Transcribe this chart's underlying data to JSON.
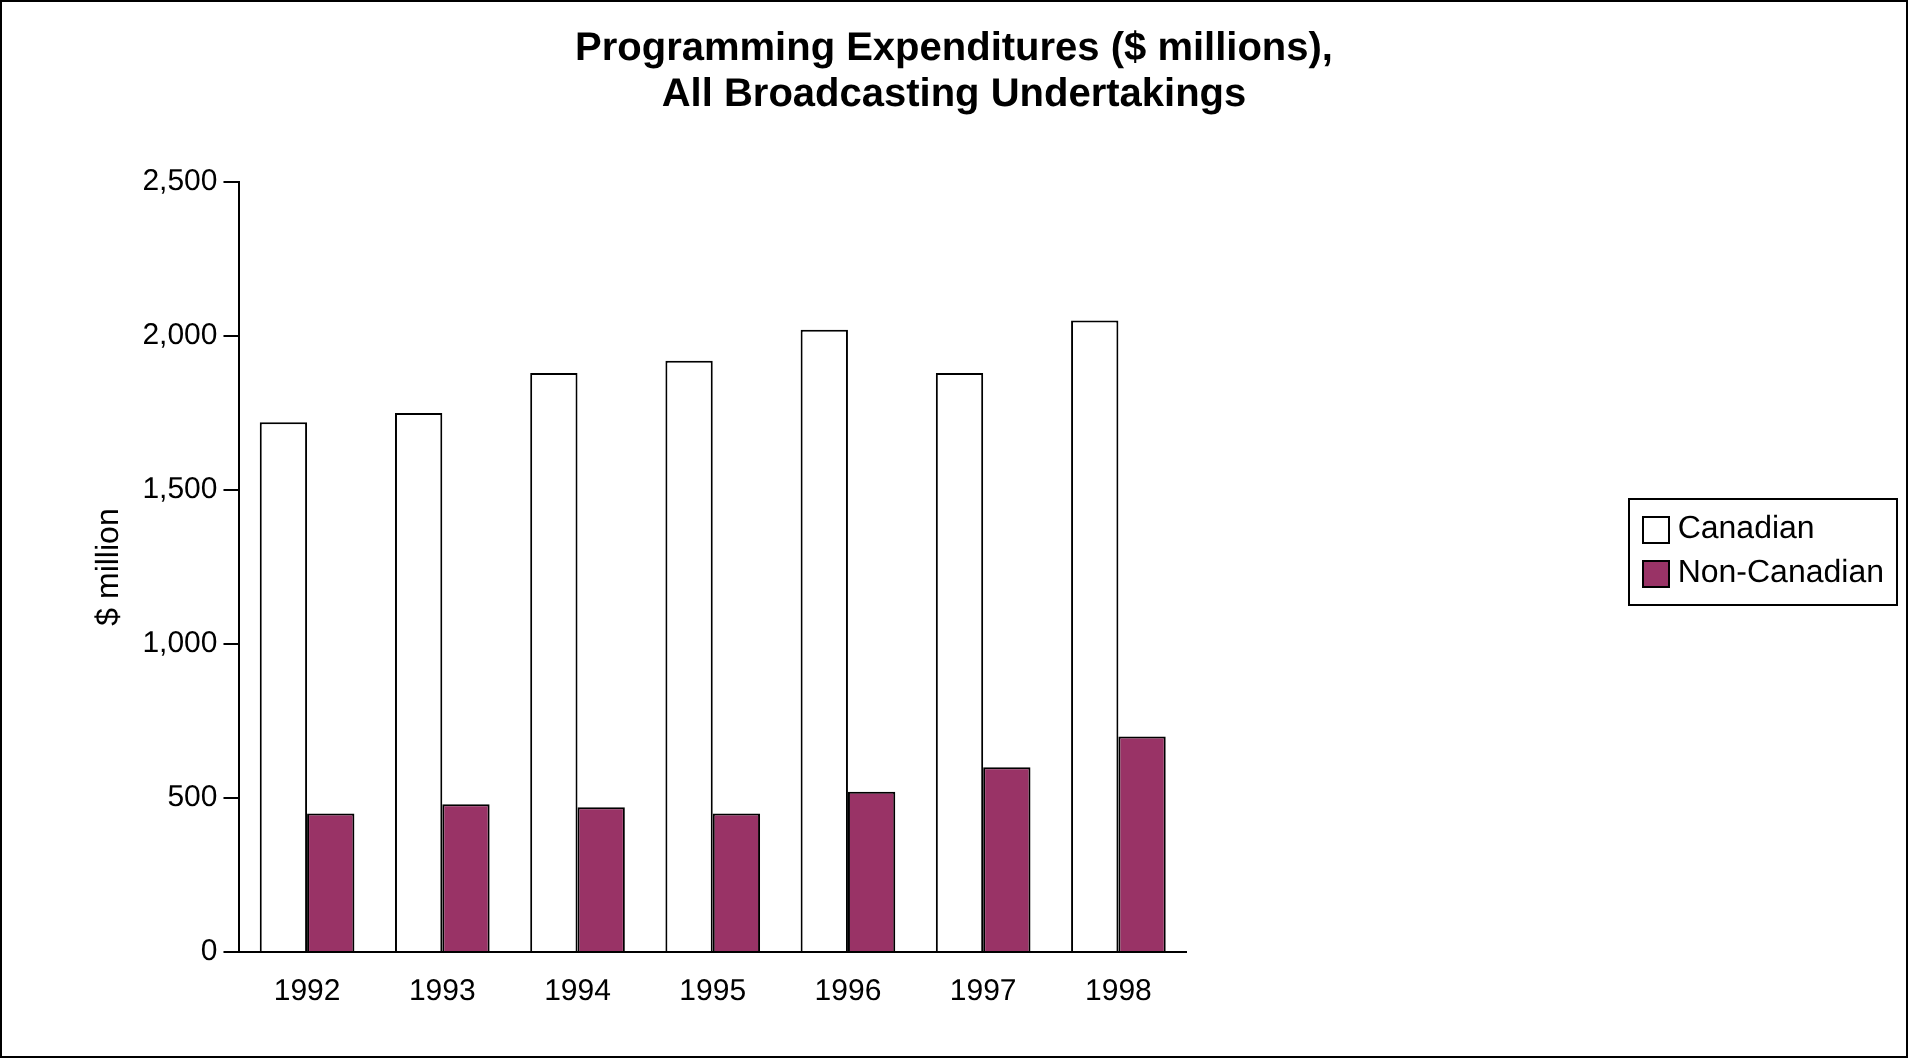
{
  "chart_data": {
    "type": "bar",
    "title": "Programming Expenditures ($ millions),\nAll Broadcasting Undertakings",
    "ylabel": "$ million",
    "categories": [
      "1992",
      "1993",
      "1994",
      "1995",
      "1996",
      "1997",
      "1998"
    ],
    "series": [
      {
        "name": "Canadian",
        "color": "#ffffff",
        "values": [
          1720,
          1750,
          1880,
          1920,
          2020,
          1880,
          2050
        ]
      },
      {
        "name": "Non-Canadian",
        "color": "#993366",
        "values": [
          450,
          480,
          470,
          450,
          520,
          600,
          700
        ]
      }
    ],
    "ylim": [
      0,
      2500
    ],
    "yticks": [
      0,
      {
        "value": 500,
        "label": "500"
      },
      {
        "value": 1000,
        "label": "1,000"
      },
      {
        "value": 1500,
        "label": "1,500"
      },
      {
        "value": 2000,
        "label": "2,000"
      },
      {
        "value": 2500,
        "label": "2,500"
      }
    ],
    "grid": false,
    "legend": "right"
  }
}
